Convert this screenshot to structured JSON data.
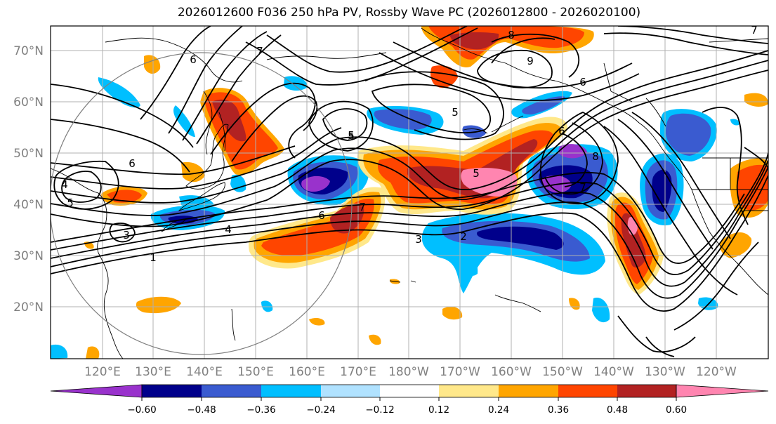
{
  "title": "2026012600 F036 250 hPa PV, Rossby Wave PC (2026012800 - 2026020100)",
  "lat_labels": [
    "70°N",
    "60°N",
    "50°N",
    "40°N",
    "30°N",
    "20°N"
  ],
  "lon_labels": [
    "120°E",
    "130°E",
    "140°E",
    "150°E",
    "160°E",
    "170°E",
    "180°W",
    "170°W",
    "160°W",
    "150°W",
    "140°W",
    "130°W",
    "120°W"
  ],
  "colorbar": {
    "colors": [
      "#9932cc",
      "#00008b",
      "#3a5bd0",
      "#00bfff",
      "#b0e2ff",
      "#ffffff",
      "#ffe88a",
      "#ffa500",
      "#ff4500",
      "#b22222",
      "#ff85b0"
    ],
    "under_color": "#9932cc",
    "over_color": "#ff85b0",
    "tick_labels": [
      "−0.60",
      "−0.48",
      "−0.36",
      "−0.24",
      "−0.12",
      "0.12",
      "0.24",
      "0.36",
      "0.48",
      "0.60"
    ]
  },
  "contour_labels": [
    "6",
    "7",
    "8",
    "9",
    "6",
    "5",
    "5",
    "6",
    "5",
    "6",
    "8",
    "7",
    "6",
    "7",
    "5",
    "4",
    "3",
    "2",
    "1",
    "5",
    "4",
    "3",
    "7"
  ]
}
